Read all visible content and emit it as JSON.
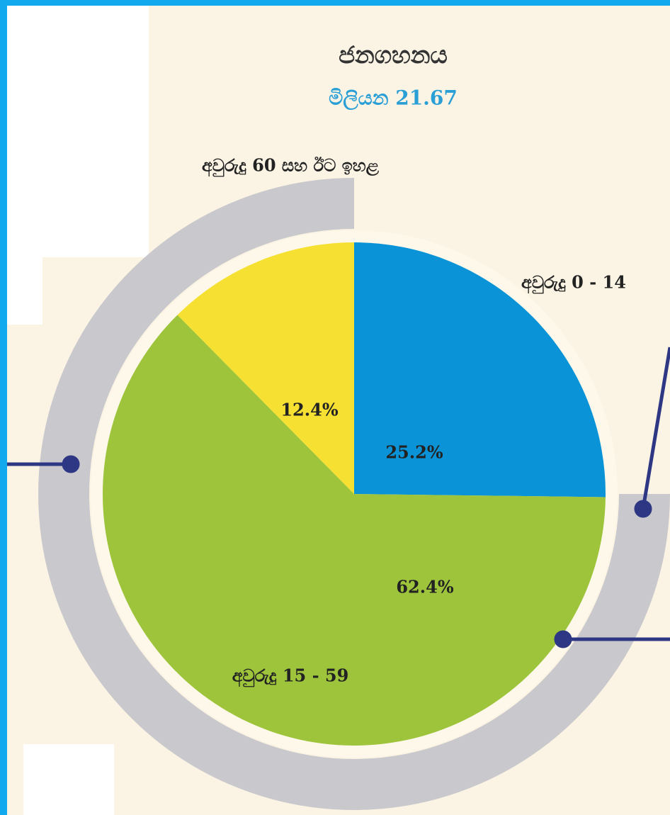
{
  "chart_data": {
    "type": "pie",
    "title": "ජනගහනය",
    "subtitle": "මිලියන 21.67",
    "categories": [
      "අවුරුදු 0 - 14",
      "අවුරුදු 15 - 59",
      "අවුරුදු 60 සහ ඊට ඉහළ"
    ],
    "values": [
      25.2,
      62.4,
      12.4
    ],
    "value_labels": [
      "25.2%",
      "62.4%",
      "12.4%"
    ],
    "colors": [
      "#0a93d6",
      "#9dc43b",
      "#f6e031"
    ]
  }
}
